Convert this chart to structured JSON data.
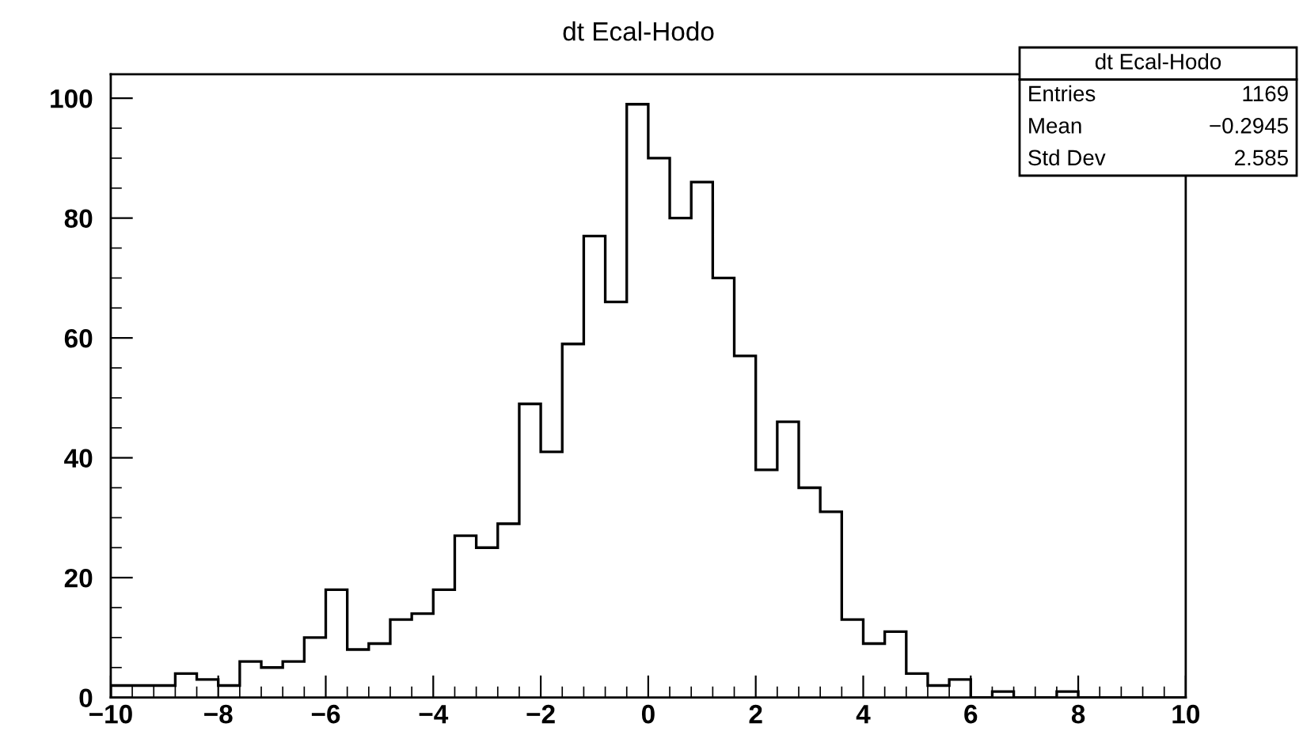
{
  "chart_data": {
    "type": "histogram",
    "title": "dt Ecal-Hodo",
    "bins": [
      -10,
      -9.6,
      -9.2,
      -8.8,
      -8.4,
      -8,
      -7.6,
      -7.2,
      -6.8,
      -6.4,
      -6,
      -5.6,
      -5.2,
      -4.8,
      -4.4,
      -4,
      -3.6,
      -3.2,
      -2.8,
      -2.4,
      -2,
      -1.6,
      -1.2,
      -0.8,
      -0.4,
      0,
      0.4,
      0.8,
      1.2,
      1.6,
      2,
      2.4,
      2.8,
      3.2,
      3.6,
      4,
      4.4,
      4.8,
      5.2,
      5.6,
      6,
      6.4,
      6.8,
      7.2,
      7.6,
      8,
      8.4,
      8.8,
      9.2,
      9.6,
      10
    ],
    "values": [
      2,
      2,
      2,
      4,
      3,
      2,
      6,
      5,
      6,
      10,
      18,
      8,
      9,
      13,
      14,
      18,
      27,
      25,
      29,
      49,
      41,
      59,
      77,
      66,
      99,
      90,
      80,
      86,
      70,
      57,
      38,
      46,
      35,
      31,
      13,
      9,
      11,
      4,
      2,
      3,
      0,
      1,
      0,
      0,
      1,
      0,
      0,
      0,
      0,
      0
    ],
    "color": "#000000",
    "xlim": [
      -10,
      10
    ],
    "xticks": [
      {
        "value": -10,
        "label": "−10"
      },
      {
        "value": -8,
        "label": "−8"
      },
      {
        "value": -6,
        "label": "−6"
      },
      {
        "value": -4,
        "label": "−4"
      },
      {
        "value": -2,
        "label": "−2"
      },
      0,
      2,
      4,
      6,
      8,
      10
    ],
    "ylim": [
      0,
      104
    ],
    "yticks": [
      0,
      20,
      40,
      60,
      80,
      100
    ],
    "grid": false,
    "annotations": [
      "dt Ecal-Hodo",
      "Entries",
      "1169",
      "Mean",
      "−0.2945",
      "Std Dev",
      "2.585"
    ]
  }
}
